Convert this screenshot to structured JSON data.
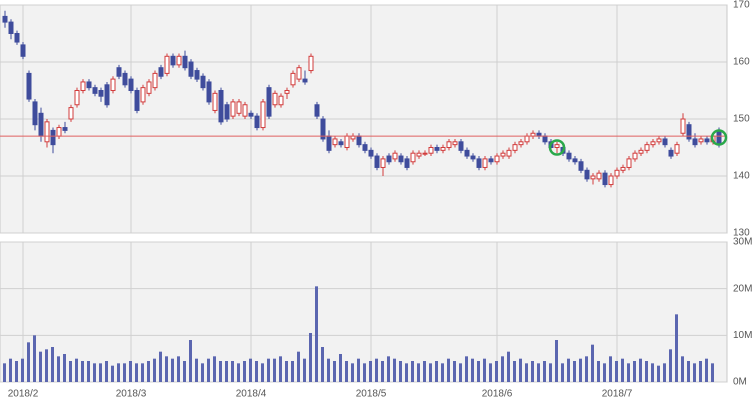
{
  "chart_data": {
    "type": "candlestick",
    "up_color": "#d23c3c",
    "down_color": "#3f4c9c",
    "volume_color": "#5b66b0",
    "ref_color": "#e06060",
    "highlight_color": "#2aa84a",
    "ylim": [
      130,
      170
    ],
    "yticks": [
      130,
      140,
      150,
      160,
      170
    ],
    "volume_ylim": [
      0,
      30
    ],
    "volume_yticks": [
      {
        "value": 0,
        "label": "0M"
      },
      {
        "value": 10,
        "label": "10M"
      },
      {
        "value": 20,
        "label": "20M"
      },
      {
        "value": 30,
        "label": "30M"
      }
    ],
    "xticks": [
      {
        "value": 3,
        "label": "2018/2"
      },
      {
        "value": 21,
        "label": "2018/3"
      },
      {
        "value": 41,
        "label": "2018/4"
      },
      {
        "value": 61,
        "label": "2018/5"
      },
      {
        "value": 82,
        "label": "2018/6"
      },
      {
        "value": 102,
        "label": "2018/7"
      }
    ],
    "grid": true,
    "ref_line": 147,
    "highlights": [
      92,
      119
    ],
    "candles": [
      [
        168,
        169,
        166,
        167
      ],
      [
        167,
        167.5,
        164,
        165
      ],
      [
        165,
        165.5,
        163,
        163.5
      ],
      [
        163,
        163.5,
        160.5,
        161
      ],
      [
        158,
        158.5,
        153,
        153.5
      ],
      [
        153,
        153.5,
        148,
        149
      ],
      [
        151,
        152,
        146,
        147
      ],
      [
        146,
        150,
        145,
        149.5
      ],
      [
        148,
        148.5,
        144,
        145.5
      ],
      [
        147,
        149,
        146.5,
        148.5
      ],
      [
        148.5,
        149.5,
        147.5,
        148
      ],
      [
        150,
        152.5,
        149.5,
        152
      ],
      [
        152.5,
        155.5,
        152,
        155
      ],
      [
        155,
        157,
        154.5,
        156.5
      ],
      [
        156.5,
        157,
        155,
        155.5
      ],
      [
        155.5,
        156,
        154,
        154.5
      ],
      [
        155,
        155.5,
        153,
        154
      ],
      [
        156,
        156.5,
        152,
        152.5
      ],
      [
        155,
        157.5,
        154.5,
        157
      ],
      [
        159,
        159.5,
        157,
        157.5
      ],
      [
        158,
        158.5,
        155.5,
        156
      ],
      [
        157,
        157.5,
        154.5,
        155
      ],
      [
        155,
        155.5,
        151,
        151.5
      ],
      [
        153,
        156,
        152.5,
        155.5
      ],
      [
        154.5,
        157,
        154,
        156.5
      ],
      [
        155.5,
        158.5,
        155,
        158
      ],
      [
        159,
        159.5,
        157,
        157.5
      ],
      [
        158,
        161.5,
        157.5,
        161
      ],
      [
        161,
        161.5,
        159,
        159.5
      ],
      [
        159.5,
        161.5,
        159,
        161
      ],
      [
        161,
        162,
        158.5,
        159
      ],
      [
        160,
        160.5,
        157,
        157.5
      ],
      [
        158.5,
        159,
        156.5,
        157
      ],
      [
        157.5,
        158,
        155,
        155.5
      ],
      [
        156.5,
        157,
        152.5,
        153
      ],
      [
        151.5,
        155,
        151,
        154.5
      ],
      [
        155,
        155.5,
        149,
        149.5
      ],
      [
        152.5,
        153,
        149.5,
        150
      ],
      [
        150.5,
        153.5,
        150,
        153
      ],
      [
        151,
        153.5,
        150.5,
        153
      ],
      [
        150.5,
        153,
        150,
        152.5
      ],
      [
        151,
        151.5,
        150,
        150.5
      ],
      [
        150.5,
        151,
        148,
        148.5
      ],
      [
        148.5,
        153.5,
        148,
        153
      ],
      [
        155.5,
        156,
        150,
        150.5
      ],
      [
        152.5,
        155,
        152,
        154.5
      ],
      [
        152.5,
        154.5,
        152,
        154
      ],
      [
        154.5,
        155.5,
        153.5,
        155
      ],
      [
        156,
        158.5,
        155.5,
        158
      ],
      [
        157,
        159.5,
        156.5,
        159
      ],
      [
        157,
        158.5,
        156,
        156.5
      ],
      [
        158.5,
        161.5,
        158,
        161
      ],
      [
        152.5,
        153,
        150,
        150.5
      ],
      [
        150,
        150.5,
        146,
        146.5
      ],
      [
        147,
        148,
        144,
        144.5
      ],
      [
        145.5,
        147,
        145,
        146.5
      ],
      [
        146,
        146.5,
        145,
        145.5
      ],
      [
        145,
        147.5,
        144.5,
        147
      ],
      [
        146.5,
        147.5,
        146,
        147
      ],
      [
        147,
        147.5,
        145,
        145.5
      ],
      [
        145.5,
        146,
        144,
        144.5
      ],
      [
        144.5,
        145,
        143,
        143.5
      ],
      [
        143.5,
        144,
        141,
        141.5
      ],
      [
        141.5,
        143.5,
        140,
        143
      ],
      [
        143.5,
        144,
        142,
        142.5
      ],
      [
        143,
        144.5,
        142.5,
        144
      ],
      [
        143.5,
        144,
        142,
        142.5
      ],
      [
        143,
        143.5,
        141,
        141.5
      ],
      [
        142.5,
        144.5,
        142,
        144
      ],
      [
        143.5,
        144.5,
        143,
        144
      ],
      [
        144,
        144.5,
        143.5,
        144
      ],
      [
        144,
        145.5,
        143.5,
        145
      ],
      [
        145,
        145.5,
        144,
        144.5
      ],
      [
        144.5,
        145.5,
        144,
        145
      ],
      [
        145,
        146.5,
        144.5,
        146
      ],
      [
        145.5,
        146.5,
        145,
        146
      ],
      [
        146,
        146.5,
        144,
        144.5
      ],
      [
        144.5,
        145,
        143,
        143.5
      ],
      [
        143.5,
        144,
        142.5,
        143
      ],
      [
        143,
        143.5,
        141,
        141.5
      ],
      [
        141.5,
        143.5,
        141,
        143
      ],
      [
        143,
        143.5,
        142,
        142.5
      ],
      [
        142.5,
        144,
        142,
        143.5
      ],
      [
        143.5,
        144.5,
        143,
        144
      ],
      [
        143.5,
        145,
        143,
        144.5
      ],
      [
        144.5,
        146,
        144,
        145.5
      ],
      [
        145.5,
        146.5,
        145,
        146
      ],
      [
        146,
        147.5,
        145.5,
        147
      ],
      [
        147,
        148,
        146.5,
        147.5
      ],
      [
        147.5,
        148,
        146.5,
        147
      ],
      [
        147,
        147.5,
        145.5,
        146
      ],
      [
        146,
        146.5,
        144.5,
        145
      ],
      [
        145,
        146,
        144,
        145.5
      ],
      [
        145,
        145.5,
        143.5,
        144
      ],
      [
        144,
        144.5,
        142.5,
        143
      ],
      [
        143,
        143.5,
        142,
        142.5
      ],
      [
        142.5,
        143,
        140.5,
        141
      ],
      [
        141,
        141.5,
        139,
        139.5
      ],
      [
        139.5,
        140.5,
        138.5,
        140
      ],
      [
        139.5,
        141,
        139,
        140.5
      ],
      [
        140.5,
        141,
        138,
        138.5
      ],
      [
        138.5,
        140.5,
        138,
        140
      ],
      [
        140,
        141.5,
        139.5,
        141
      ],
      [
        141,
        142,
        140.5,
        141.5
      ],
      [
        141.5,
        143.5,
        141,
        143
      ],
      [
        143,
        144.5,
        142.5,
        144
      ],
      [
        144,
        145,
        143.5,
        144.5
      ],
      [
        144.5,
        146,
        144,
        145.5
      ],
      [
        145.5,
        146.5,
        145,
        146
      ],
      [
        146,
        147,
        145.5,
        146.5
      ],
      [
        146.5,
        147,
        145,
        145.5
      ],
      [
        144.5,
        145,
        143,
        143.5
      ],
      [
        144,
        146,
        143.5,
        145.5
      ],
      [
        147.5,
        151,
        147,
        150
      ],
      [
        149,
        149.5,
        146,
        146.5
      ],
      [
        146.5,
        147.5,
        145,
        145.5
      ],
      [
        146,
        147,
        145.5,
        146.5
      ],
      [
        146.5,
        147,
        145.5,
        146
      ],
      [
        146,
        147.5,
        145.5,
        147
      ],
      [
        148,
        148.5,
        145,
        145.5
      ]
    ],
    "volume": [
      4,
      5,
      4.5,
      5,
      8.5,
      10,
      6.5,
      7,
      7.5,
      5.5,
      6,
      4.5,
      5,
      4.5,
      4.5,
      4,
      4,
      4.5,
      3.5,
      4,
      4,
      4.5,
      4,
      4,
      4.5,
      5,
      6.5,
      5.5,
      5,
      5.5,
      4.5,
      9,
      5,
      4,
      5,
      5.5,
      4.5,
      4.5,
      4.5,
      4,
      4.5,
      5,
      4.5,
      4,
      5,
      5,
      5.5,
      4.5,
      4.5,
      6.5,
      5,
      10.5,
      20.5,
      7.5,
      5,
      4.5,
      6,
      4.5,
      4,
      5,
      4,
      4.5,
      5,
      4.5,
      5.5,
      5,
      4.5,
      4,
      4.5,
      4,
      4.5,
      4,
      4.5,
      4,
      5,
      4.5,
      4,
      5.5,
      5,
      4.5,
      5,
      4,
      4.5,
      5.5,
      6.5,
      4.5,
      5,
      4,
      4.5,
      4,
      4.5,
      4,
      9,
      4,
      5,
      4.5,
      5,
      5.5,
      8,
      4.5,
      4,
      5.5,
      4.5,
      5,
      4,
      4.5,
      5,
      4.5,
      4,
      3.5,
      4,
      7,
      14.5,
      5.5,
      4.5,
      4,
      4.5,
      5,
      4
    ]
  }
}
